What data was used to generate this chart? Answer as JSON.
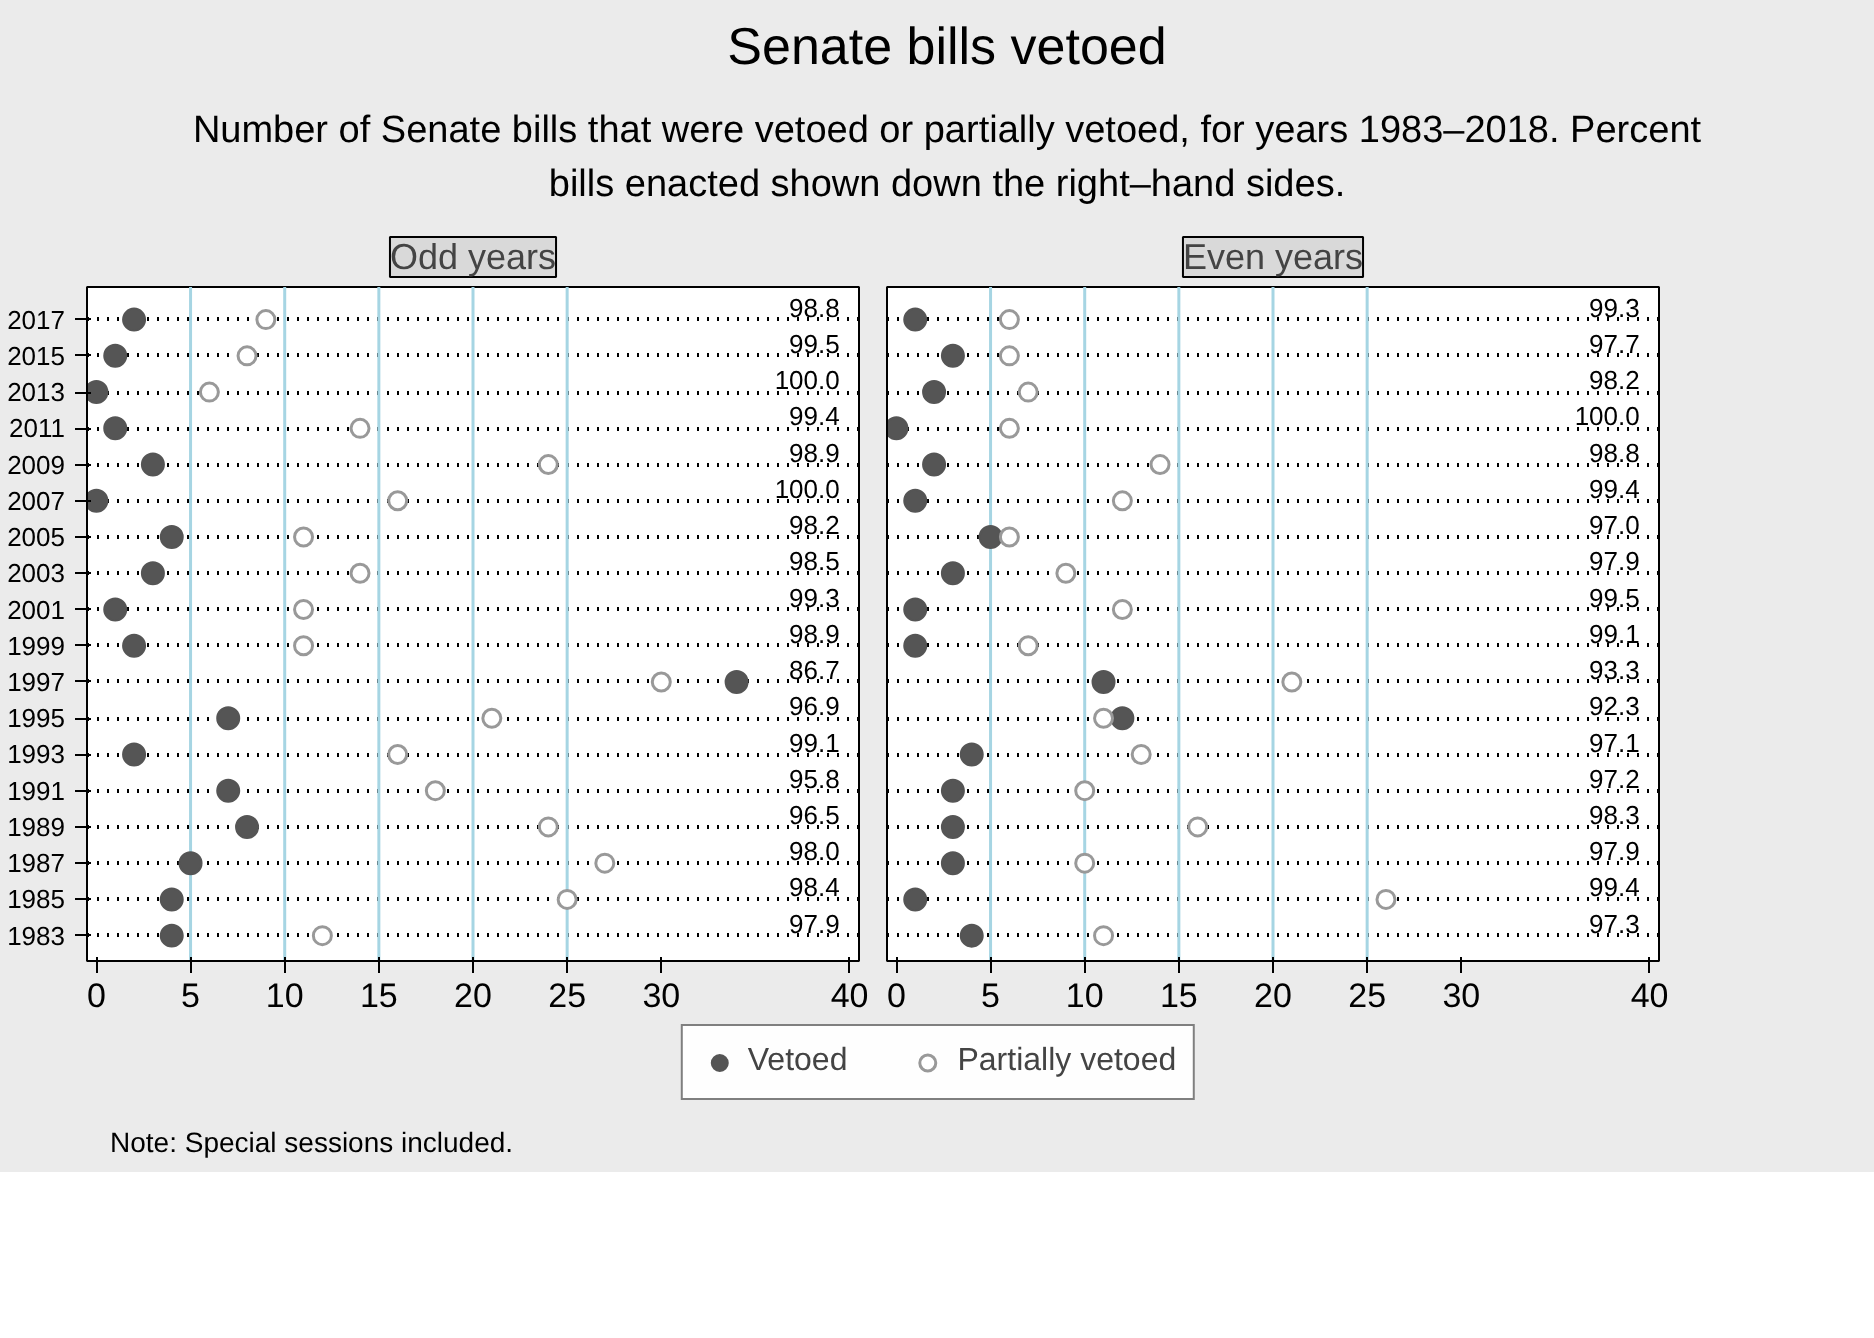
{
  "chart_data": [
    {
      "type": "scatter",
      "title": "Senate bills vetoed",
      "subtitle": "Number of Senate bills that were vetoed or partially vetoed, for years 1983–2018. Percent bills enacted shown down the right–hand sides.",
      "categories": [
        "2017",
        "2015",
        "2013",
        "2011",
        "2009",
        "2007",
        "2005",
        "2003",
        "2001",
        "1999",
        "1997",
        "1995",
        "1993",
        "1991",
        "1989",
        "1987",
        "1985",
        "1983"
      ],
      "series": [
        {
          "name": "Vetoed",
          "color": "#555555",
          "values": [
            2,
            1,
            0,
            1,
            3,
            0,
            4,
            3,
            1,
            2,
            34,
            7,
            2,
            7,
            8,
            5,
            4,
            4
          ]
        },
        {
          "name": "Partially vetoed",
          "color": "#999999",
          "values": [
            9,
            8,
            6,
            14,
            24,
            16,
            11,
            14,
            11,
            11,
            30,
            21,
            16,
            18,
            24,
            27,
            25,
            12
          ]
        }
      ],
      "annotations": [
        "Odd years",
        "98.8",
        "99.5",
        "100.0",
        "99.4",
        "98.9",
        "100.0",
        "98.2",
        "98.5",
        "99.3",
        "98.9",
        "86.7",
        "96.9",
        "99.1",
        "95.8",
        "96.5",
        "98.0",
        "98.4",
        "97.9",
        "Note: Special sessions included."
      ],
      "xlim": [
        -0.5,
        40.5
      ],
      "xticks": [
        0,
        5,
        10,
        15,
        20,
        25,
        30,
        40
      ],
      "ref_lines": [
        {
          "axis": "x",
          "value": 5,
          "color": "#a6d5e3"
        },
        {
          "axis": "x",
          "value": 10,
          "color": "#a6d5e3"
        },
        {
          "axis": "x",
          "value": 15,
          "color": "#a6d5e3"
        },
        {
          "axis": "x",
          "value": 20,
          "color": "#a6d5e3"
        },
        {
          "axis": "x",
          "value": 25,
          "color": "#a6d5e3"
        }
      ],
      "grid": "y",
      "marker": "circle",
      "legend": "bottom",
      "orientation": "horizontal"
    },
    {
      "type": "scatter",
      "categories": [
        null,
        null,
        null,
        null,
        null,
        null,
        null,
        null,
        null,
        null,
        null,
        null,
        null,
        null,
        null,
        null,
        null,
        null
      ],
      "series": [
        {
          "color": "#555555",
          "values": [
            1,
            3,
            2,
            0,
            2,
            1,
            5,
            3,
            1,
            1,
            11,
            12,
            4,
            3,
            3,
            3,
            1,
            4
          ]
        },
        {
          "color": "#999999",
          "values": [
            6,
            6,
            7,
            6,
            14,
            12,
            6,
            9,
            12,
            7,
            21,
            11,
            13,
            10,
            16,
            10,
            26,
            11
          ]
        }
      ],
      "annotations": [
        "Even years",
        "99.3",
        "97.7",
        "98.2",
        "100.0",
        "98.8",
        "99.4",
        "97.0",
        "97.9",
        "99.5",
        "99.1",
        "93.3",
        "92.3",
        "97.1",
        "97.2",
        "98.3",
        "97.9",
        "99.4",
        "97.3"
      ],
      "xlim": [
        -0.5,
        40.5
      ],
      "xticks": [
        0,
        5,
        10,
        15,
        20,
        25,
        30,
        40
      ],
      "ref_lines": [
        {
          "axis": "x",
          "value": 5,
          "color": "#a6d5e3"
        },
        {
          "axis": "x",
          "value": 10,
          "color": "#a6d5e3"
        },
        {
          "axis": "x",
          "value": 15,
          "color": "#a6d5e3"
        },
        {
          "axis": "x",
          "value": 20,
          "color": "#a6d5e3"
        },
        {
          "axis": "x",
          "value": 25,
          "color": "#a6d5e3"
        }
      ],
      "grid": "y",
      "marker": "circle",
      "tick_labels": "x",
      "orientation": "horizontal"
    }
  ]
}
